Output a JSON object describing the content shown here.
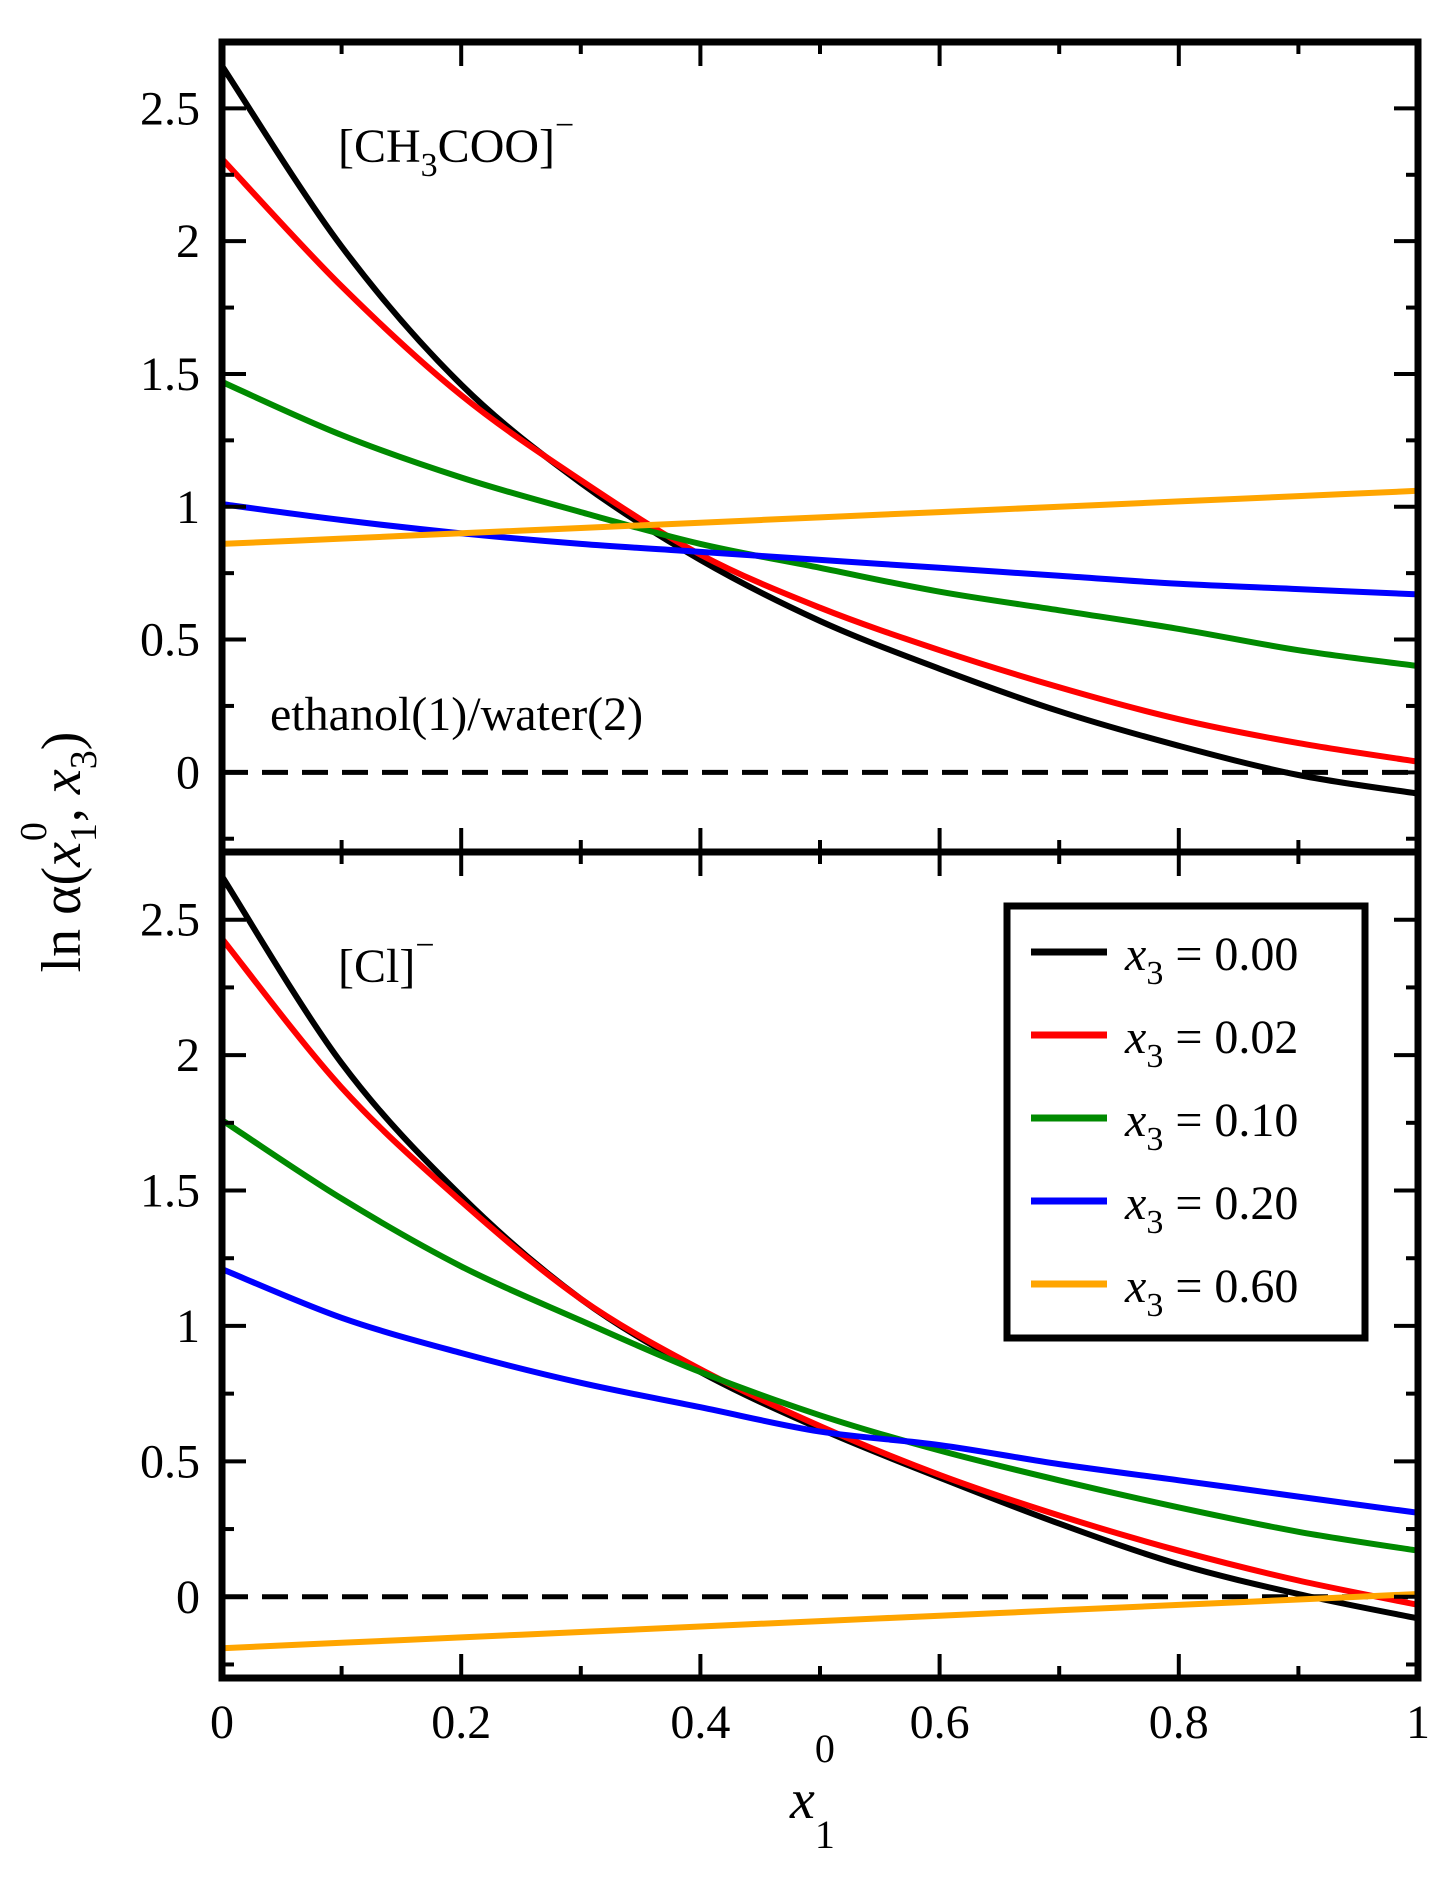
{
  "chart_data": {
    "type": "line",
    "x": [
      0,
      0.1,
      0.2,
      0.3,
      0.4,
      0.5,
      0.6,
      0.7,
      0.8,
      0.9,
      1.0
    ],
    "xlim": [
      0,
      1
    ],
    "ylim": [
      -0.3,
      2.75
    ],
    "xticks": [
      0,
      0.2,
      0.4,
      0.6,
      0.8,
      1
    ],
    "xtick_labels": [
      "0",
      "0.2",
      "0.4",
      "0.6",
      "0.8",
      "1"
    ],
    "yticks": [
      0,
      0.5,
      1,
      1.5,
      2,
      2.5
    ],
    "ytick_labels": [
      "0",
      "0.5",
      "1",
      "1.5",
      "2",
      "2.5"
    ],
    "ylabel": {
      "prefix": "ln α(",
      "v1": "x",
      "v1_sub": "1",
      "v1_sup": "0",
      "sep": ", ",
      "v2": "x",
      "v2_sub": "3",
      "suffix": ")"
    },
    "xlabel": {
      "v": "x",
      "sub": "1",
      "sup": "0"
    },
    "legend": {
      "position": "right",
      "var": "x",
      "sub": "3",
      "entries": [
        {
          "text": " = 0.00",
          "color": "#000000"
        },
        {
          "text": " = 0.02",
          "color": "#ff0000"
        },
        {
          "text": " = 0.10",
          "color": "#008a00"
        },
        {
          "text": " = 0.20",
          "color": "#0000ff"
        },
        {
          "text": " = 0.60",
          "color": "#ffa500"
        }
      ]
    },
    "reference_line": {
      "y": 0,
      "style": "dashed",
      "color": "#000000"
    },
    "panels": [
      {
        "label": {
          "main": "[CH",
          "sub": "3",
          "tail": "COO]",
          "sup": "−"
        },
        "annotation": "ethanol(1)/water(2)",
        "series": [
          {
            "name": "x3 = 0.00",
            "color": "#000000",
            "values": [
              2.66,
              1.98,
              1.46,
              1.09,
              0.8,
              0.57,
              0.39,
              0.23,
              0.1,
              -0.01,
              -0.08
            ]
          },
          {
            "name": "x3 = 0.02",
            "color": "#ff0000",
            "values": [
              2.31,
              1.83,
              1.42,
              1.1,
              0.82,
              0.62,
              0.46,
              0.32,
              0.2,
              0.11,
              0.04
            ]
          },
          {
            "name": "x3 = 0.10",
            "color": "#008a00",
            "values": [
              1.47,
              1.27,
              1.11,
              0.98,
              0.86,
              0.77,
              0.68,
              0.61,
              0.54,
              0.46,
              0.4
            ]
          },
          {
            "name": "x3 = 0.20",
            "color": "#0000ff",
            "values": [
              1.01,
              0.95,
              0.9,
              0.86,
              0.83,
              0.8,
              0.77,
              0.74,
              0.71,
              0.69,
              0.67
            ]
          },
          {
            "name": "x3 = 0.60",
            "color": "#ffa500",
            "values": [
              0.86,
              0.88,
              0.9,
              0.92,
              0.94,
              0.96,
              0.98,
              1.0,
              1.02,
              1.04,
              1.06
            ]
          }
        ]
      },
      {
        "label": {
          "main": "[Cl]",
          "sub": "",
          "tail": "",
          "sup": "−"
        },
        "annotation": "",
        "series": [
          {
            "name": "x3 = 0.00",
            "color": "#000000",
            "values": [
              2.66,
              1.97,
              1.48,
              1.1,
              0.83,
              0.62,
              0.44,
              0.27,
              0.12,
              0.01,
              -0.08
            ]
          },
          {
            "name": "x3 = 0.02",
            "color": "#ff0000",
            "values": [
              2.43,
              1.88,
              1.46,
              1.1,
              0.84,
              0.63,
              0.45,
              0.3,
              0.17,
              0.06,
              -0.03
            ]
          },
          {
            "name": "x3 = 0.10",
            "color": "#008a00",
            "values": [
              1.76,
              1.47,
              1.22,
              1.02,
              0.83,
              0.67,
              0.54,
              0.43,
              0.33,
              0.24,
              0.17
            ]
          },
          {
            "name": "x3 = 0.20",
            "color": "#0000ff",
            "values": [
              1.21,
              1.03,
              0.9,
              0.79,
              0.7,
              0.61,
              0.56,
              0.49,
              0.43,
              0.37,
              0.31
            ]
          },
          {
            "name": "x3 = 0.60",
            "color": "#ffa500",
            "values": [
              -0.19,
              -0.17,
              -0.15,
              -0.13,
              -0.11,
              -0.09,
              -0.07,
              -0.05,
              -0.03,
              -0.01,
              0.01
            ]
          }
        ]
      }
    ]
  }
}
